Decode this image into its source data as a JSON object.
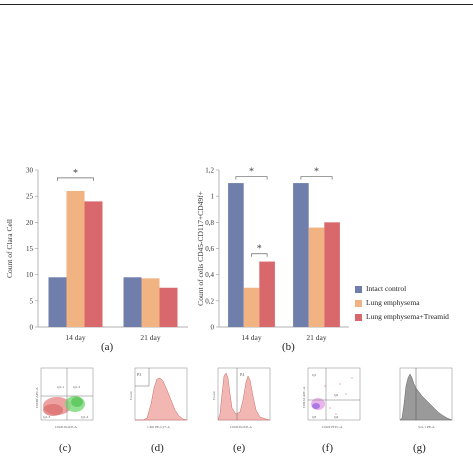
{
  "chart_data": [
    {
      "type": "bar",
      "panel": "(a)",
      "categories": [
        "14 day",
        "21 day"
      ],
      "series": [
        {
          "name": "Intact control",
          "values": [
            9.5,
            9.5
          ]
        },
        {
          "name": "Lung emphysema",
          "values": [
            26,
            9.3
          ]
        },
        {
          "name": "Lung emphysema+Treamid",
          "values": [
            24,
            7.5
          ]
        }
      ],
      "ylabel": "Count of Clara Cell",
      "ylim": [
        0,
        30
      ],
      "yticks": [
        "0",
        "5",
        "10",
        "15",
        "20",
        "25",
        "30"
      ],
      "annotations": [
        "*"
      ]
    },
    {
      "type": "bar",
      "panel": "(b)",
      "categories": [
        "14 day",
        "21 day"
      ],
      "series": [
        {
          "name": "Intact control",
          "values": [
            1.1,
            1.1
          ]
        },
        {
          "name": "Lung emphysema",
          "values": [
            0.3,
            0.76
          ]
        },
        {
          "name": "Lung emphysema+Treamid",
          "values": [
            0.5,
            0.8
          ]
        }
      ],
      "ylabel": "Count of cells CD45-CD117+CD49f+",
      "ylim": [
        0,
        1.2
      ],
      "yticks": [
        "0",
        "0,2",
        "0,4",
        "0,6",
        "0,8",
        "1",
        "1,2"
      ],
      "annotations": [
        "*",
        "*",
        "*"
      ]
    }
  ],
  "colors": {
    "intact": "#6f7eab",
    "emphysema": "#f2b382",
    "treamid": "#d9686c",
    "flow_pink": "#f3b7b3",
    "flow_gray": "#9a9a9a"
  },
  "legend": [
    "Intact control",
    "Lung emphysema",
    "Lung emphysema+Treamid"
  ],
  "panel_labels": [
    "(a)",
    "(b)",
    "(c)",
    "(d)",
    "(e)",
    "(f)",
    "(g)"
  ],
  "flow_panels": [
    {
      "label": "(c)",
      "xlabel": "CD45 PerCP-A",
      "ylabel": "CD49f APC-A",
      "gates": [
        "Q1-1",
        "Q1-2",
        "Q1-3",
        "Q1-4"
      ]
    },
    {
      "label": "(d)",
      "xlabel": "c-Kit PE-Cy7-A",
      "ylabel": "Count",
      "gates": [
        "P3"
      ]
    },
    {
      "label": "(e)",
      "xlabel": "CD45 PerCP-A",
      "ylabel": "Count",
      "gates": [
        "P4"
      ]
    },
    {
      "label": "(f)",
      "xlabel": "CD24 FITC-A",
      "ylabel": "CD133 APC-A",
      "gates": [
        "Q1",
        "Q2",
        "Q3",
        "Q4"
      ]
    },
    {
      "label": "(g)",
      "xlabel": "Sca-1 PE-A",
      "ylabel": "",
      "gates": []
    }
  ]
}
